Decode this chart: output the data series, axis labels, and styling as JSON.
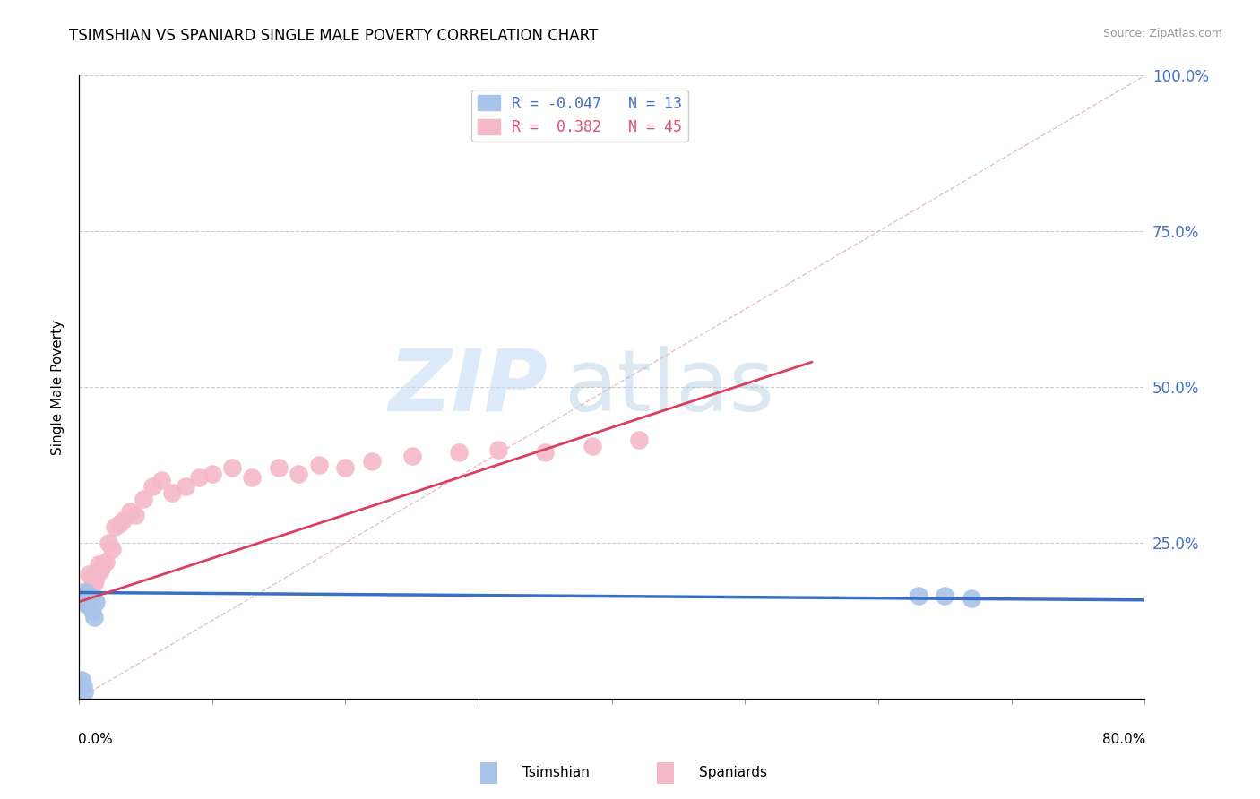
{
  "title": "TSIMSHIAN VS SPANIARD SINGLE MALE POVERTY CORRELATION CHART",
  "source": "Source: ZipAtlas.com",
  "ylabel": "Single Male Poverty",
  "legend_blue_r": "-0.047",
  "legend_blue_n": "13",
  "legend_pink_r": "0.382",
  "legend_pink_n": "45",
  "blue_color": "#a8c4e8",
  "pink_color": "#f5b8c8",
  "blue_line_color": "#3a6fc4",
  "pink_line_color": "#d94060",
  "diag_line_color": "#e0b0c0",
  "watermark_zip": "ZIP",
  "watermark_atlas": "atlas",
  "tsimshian_x": [
    0.002,
    0.003,
    0.004,
    0.005,
    0.006,
    0.008,
    0.009,
    0.01,
    0.011,
    0.013,
    0.63,
    0.65,
    0.67
  ],
  "tsimshian_y": [
    0.03,
    0.02,
    0.01,
    0.17,
    0.15,
    0.165,
    0.16,
    0.14,
    0.13,
    0.155,
    0.165,
    0.165,
    0.16
  ],
  "spaniard_x": [
    0.002,
    0.003,
    0.004,
    0.005,
    0.006,
    0.007,
    0.008,
    0.009,
    0.01,
    0.011,
    0.012,
    0.013,
    0.014,
    0.015,
    0.016,
    0.017,
    0.018,
    0.02,
    0.022,
    0.025,
    0.027,
    0.03,
    0.033,
    0.038,
    0.042,
    0.048,
    0.055,
    0.062,
    0.07,
    0.08,
    0.09,
    0.1,
    0.115,
    0.13,
    0.15,
    0.165,
    0.18,
    0.2,
    0.22,
    0.25,
    0.285,
    0.315,
    0.35,
    0.385,
    0.42
  ],
  "spaniard_y": [
    0.17,
    0.155,
    0.165,
    0.16,
    0.155,
    0.2,
    0.175,
    0.195,
    0.18,
    0.185,
    0.19,
    0.195,
    0.205,
    0.215,
    0.205,
    0.21,
    0.215,
    0.22,
    0.25,
    0.24,
    0.275,
    0.28,
    0.285,
    0.3,
    0.295,
    0.32,
    0.34,
    0.35,
    0.33,
    0.34,
    0.355,
    0.36,
    0.37,
    0.355,
    0.37,
    0.36,
    0.375,
    0.37,
    0.38,
    0.39,
    0.395,
    0.4,
    0.395,
    0.405,
    0.415
  ],
  "xmin": 0.0,
  "xmax": 0.8,
  "ymin": 0.0,
  "ymax": 1.0,
  "blue_trend_x0": 0.0,
  "blue_trend_y0": 0.17,
  "blue_trend_x1": 0.8,
  "blue_trend_y1": 0.158,
  "pink_trend_x0": 0.0,
  "pink_trend_y0": 0.155,
  "pink_trend_x1": 0.55,
  "pink_trend_y1": 0.54
}
